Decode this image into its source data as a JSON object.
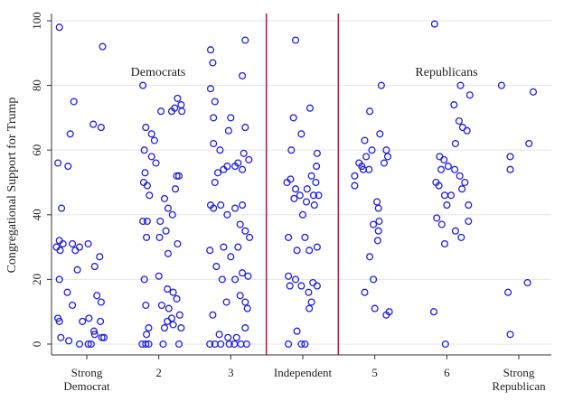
{
  "chart_data": {
    "type": "scatter",
    "title": "",
    "xlabel": "",
    "ylabel": "Congregational Support for Trump",
    "ylim": [
      0,
      100
    ],
    "yticks": [
      0,
      20,
      40,
      60,
      80,
      100
    ],
    "grid": "horizontal",
    "categories": [
      [
        "Strong",
        "Democrat"
      ],
      [
        "2"
      ],
      [
        "3"
      ],
      [
        "Independent"
      ],
      [
        "5"
      ],
      [
        "6"
      ],
      [
        "Strong",
        "Republican"
      ]
    ],
    "annotations": [
      "Democrats",
      "Republicans"
    ],
    "divider_between": [
      3,
      4
    ],
    "colors": {
      "points": "#1f1fe0",
      "dividers": "#a8224a",
      "grid": "#e6e6e6",
      "axis": "#333333"
    },
    "series": [
      {
        "values": [
          [
            -0.38,
            98
          ],
          [
            -0.18,
            75
          ],
          [
            0.22,
            92
          ],
          [
            -0.23,
            65
          ],
          [
            -0.4,
            56
          ],
          [
            -0.35,
            42
          ],
          [
            0.09,
            68
          ],
          [
            0.2,
            67
          ],
          [
            -0.26,
            55
          ],
          [
            -0.38,
            32
          ],
          [
            -0.33,
            31
          ],
          [
            -0.37,
            29
          ],
          [
            -0.42,
            30
          ],
          [
            -0.1,
            30
          ],
          [
            -0.2,
            31
          ],
          [
            -0.16,
            29
          ],
          [
            0.18,
            27
          ],
          [
            0.02,
            31
          ],
          [
            -0.38,
            20
          ],
          [
            -0.13,
            23
          ],
          [
            0.11,
            24
          ],
          [
            -0.27,
            16
          ],
          [
            -0.2,
            12
          ],
          [
            0.14,
            15
          ],
          [
            0.2,
            13
          ],
          [
            -0.38,
            7
          ],
          [
            -0.4,
            8
          ],
          [
            -0.06,
            7
          ],
          [
            0.03,
            8
          ],
          [
            0.1,
            4
          ],
          [
            0.19,
            7
          ],
          [
            0.24,
            2
          ],
          [
            0.21,
            2
          ],
          [
            -0.36,
            2
          ],
          [
            -0.25,
            1
          ],
          [
            -0.1,
            0
          ],
          [
            0.02,
            0
          ],
          [
            0.06,
            0
          ],
          [
            0.11,
            3
          ]
        ]
      },
      {
        "values": [
          [
            0.78,
            80
          ],
          [
            1.26,
            76
          ],
          [
            1.31,
            74
          ],
          [
            1.22,
            73
          ],
          [
            1.03,
            72
          ],
          [
            1.18,
            72
          ],
          [
            1.32,
            72
          ],
          [
            0.82,
            67
          ],
          [
            0.9,
            65
          ],
          [
            0.94,
            63
          ],
          [
            0.8,
            60
          ],
          [
            0.9,
            58
          ],
          [
            0.96,
            56
          ],
          [
            0.81,
            53
          ],
          [
            0.79,
            50
          ],
          [
            0.84,
            49
          ],
          [
            0.87,
            46
          ],
          [
            1.23,
            48
          ],
          [
            1.25,
            52
          ],
          [
            1.28,
            52
          ],
          [
            1.08,
            45
          ],
          [
            1.13,
            42
          ],
          [
            1.19,
            40
          ],
          [
            1.02,
            38
          ],
          [
            1.1,
            35
          ],
          [
            0.78,
            38
          ],
          [
            0.84,
            38
          ],
          [
            0.83,
            33
          ],
          [
            1.01,
            33
          ],
          [
            1.13,
            28
          ],
          [
            1.26,
            31
          ],
          [
            0.8,
            20
          ],
          [
            1.0,
            21
          ],
          [
            1.12,
            17
          ],
          [
            1.2,
            16
          ],
          [
            0.82,
            12
          ],
          [
            1.04,
            12
          ],
          [
            1.14,
            11
          ],
          [
            1.25,
            14
          ],
          [
            1.29,
            9
          ],
          [
            1.18,
            8
          ],
          [
            0.86,
            5
          ],
          [
            0.83,
            3
          ],
          [
            1.08,
            5
          ],
          [
            1.12,
            7
          ],
          [
            1.2,
            6
          ],
          [
            1.31,
            5
          ],
          [
            0.77,
            0
          ],
          [
            0.82,
            0
          ],
          [
            0.86,
            0
          ],
          [
            1.06,
            0
          ],
          [
            1.28,
            0
          ]
        ]
      },
      {
        "values": [
          [
            1.72,
            91
          ],
          [
            1.75,
            87
          ],
          [
            2.2,
            94
          ],
          [
            2.16,
            83
          ],
          [
            1.72,
            79
          ],
          [
            1.78,
            75
          ],
          [
            2.0,
            70
          ],
          [
            1.76,
            70
          ],
          [
            1.97,
            66
          ],
          [
            2.2,
            67
          ],
          [
            1.76,
            62
          ],
          [
            1.85,
            60
          ],
          [
            2.18,
            59
          ],
          [
            2.06,
            55
          ],
          [
            1.95,
            55
          ],
          [
            1.9,
            54
          ],
          [
            1.82,
            53
          ],
          [
            1.78,
            50
          ],
          [
            2.1,
            56
          ],
          [
            2.16,
            54
          ],
          [
            2.25,
            57
          ],
          [
            1.72,
            43
          ],
          [
            1.76,
            42
          ],
          [
            1.86,
            43
          ],
          [
            1.95,
            40
          ],
          [
            2.06,
            42
          ],
          [
            2.16,
            43
          ],
          [
            2.13,
            37
          ],
          [
            2.2,
            35
          ],
          [
            2.26,
            33
          ],
          [
            1.71,
            29
          ],
          [
            1.8,
            24
          ],
          [
            1.9,
            30
          ],
          [
            2.0,
            27
          ],
          [
            2.1,
            30
          ],
          [
            2.16,
            22
          ],
          [
            2.24,
            21
          ],
          [
            1.88,
            20
          ],
          [
            1.94,
            13
          ],
          [
            2.06,
            20
          ],
          [
            2.13,
            15
          ],
          [
            2.2,
            13
          ],
          [
            2.23,
            11
          ],
          [
            1.75,
            9
          ],
          [
            1.84,
            3
          ],
          [
            1.96,
            2
          ],
          [
            2.08,
            2
          ],
          [
            2.2,
            5
          ],
          [
            1.71,
            0
          ],
          [
            1.78,
            0
          ],
          [
            1.86,
            0
          ],
          [
            1.98,
            0
          ],
          [
            2.05,
            0
          ],
          [
            2.14,
            0
          ],
          [
            2.22,
            0
          ]
        ]
      },
      {
        "values": [
          [
            2.9,
            94
          ],
          [
            3.1,
            73
          ],
          [
            2.87,
            70
          ],
          [
            2.98,
            65
          ],
          [
            2.84,
            60
          ],
          [
            3.2,
            59
          ],
          [
            3.19,
            55
          ],
          [
            2.78,
            50
          ],
          [
            2.83,
            51
          ],
          [
            2.9,
            48
          ],
          [
            2.96,
            46
          ],
          [
            2.88,
            45
          ],
          [
            3.06,
            48
          ],
          [
            3.15,
            46
          ],
          [
            3.18,
            50
          ],
          [
            3.12,
            52
          ],
          [
            3.22,
            46
          ],
          [
            3.05,
            44
          ],
          [
            3.0,
            40
          ],
          [
            3.16,
            43
          ],
          [
            2.8,
            33
          ],
          [
            2.92,
            29
          ],
          [
            3.03,
            33
          ],
          [
            3.09,
            29
          ],
          [
            3.2,
            30
          ],
          [
            2.8,
            21
          ],
          [
            2.82,
            18
          ],
          [
            2.9,
            20
          ],
          [
            2.98,
            18
          ],
          [
            3.08,
            16
          ],
          [
            3.14,
            19
          ],
          [
            3.2,
            18
          ],
          [
            3.12,
            13
          ],
          [
            3.09,
            11
          ],
          [
            2.92,
            4
          ],
          [
            2.8,
            0
          ],
          [
            2.98,
            0
          ],
          [
            3.03,
            0
          ]
        ]
      },
      {
        "values": [
          [
            3.72,
            52
          ],
          [
            3.72,
            49
          ],
          [
            3.78,
            56
          ],
          [
            3.82,
            55
          ],
          [
            3.88,
            58
          ],
          [
            3.92,
            54
          ],
          [
            3.93,
            72
          ],
          [
            3.86,
            63
          ],
          [
            3.96,
            60
          ],
          [
            4.07,
            65
          ],
          [
            4.09,
            80
          ],
          [
            4.13,
            56
          ],
          [
            4.03,
            44
          ],
          [
            4.05,
            42
          ],
          [
            3.98,
            37
          ],
          [
            4.05,
            35
          ],
          [
            4.16,
            60
          ],
          [
            4.18,
            58
          ],
          [
            3.93,
            27
          ],
          [
            4.04,
            32
          ],
          [
            3.98,
            20
          ],
          [
            3.86,
            16
          ],
          [
            4.0,
            11
          ],
          [
            4.16,
            9
          ],
          [
            4.2,
            10
          ],
          [
            3.84,
            54
          ],
          [
            4.06,
            38
          ]
        ]
      },
      {
        "values": [
          [
            4.83,
            99
          ],
          [
            5.19,
            80
          ],
          [
            5.32,
            77
          ],
          [
            5.1,
            74
          ],
          [
            5.17,
            69
          ],
          [
            5.22,
            67
          ],
          [
            5.28,
            66
          ],
          [
            5.12,
            62
          ],
          [
            4.9,
            58
          ],
          [
            4.96,
            57
          ],
          [
            4.92,
            54
          ],
          [
            5.02,
            55
          ],
          [
            5.11,
            54
          ],
          [
            5.18,
            52
          ],
          [
            5.25,
            50
          ],
          [
            5.21,
            48
          ],
          [
            4.85,
            50
          ],
          [
            4.89,
            49
          ],
          [
            4.97,
            46
          ],
          [
            5.0,
            43
          ],
          [
            5.06,
            46
          ],
          [
            5.3,
            43
          ],
          [
            5.3,
            38
          ],
          [
            4.86,
            39
          ],
          [
            4.93,
            37
          ],
          [
            5.12,
            35
          ],
          [
            5.2,
            33
          ],
          [
            4.97,
            31
          ],
          [
            4.82,
            10
          ],
          [
            4.98,
            0
          ]
        ]
      },
      {
        "values": [
          [
            5.76,
            80
          ],
          [
            6.2,
            78
          ],
          [
            5.88,
            58
          ],
          [
            5.88,
            54
          ],
          [
            6.14,
            62
          ],
          [
            5.85,
            16
          ],
          [
            6.12,
            19
          ],
          [
            5.88,
            3
          ]
        ]
      }
    ]
  }
}
